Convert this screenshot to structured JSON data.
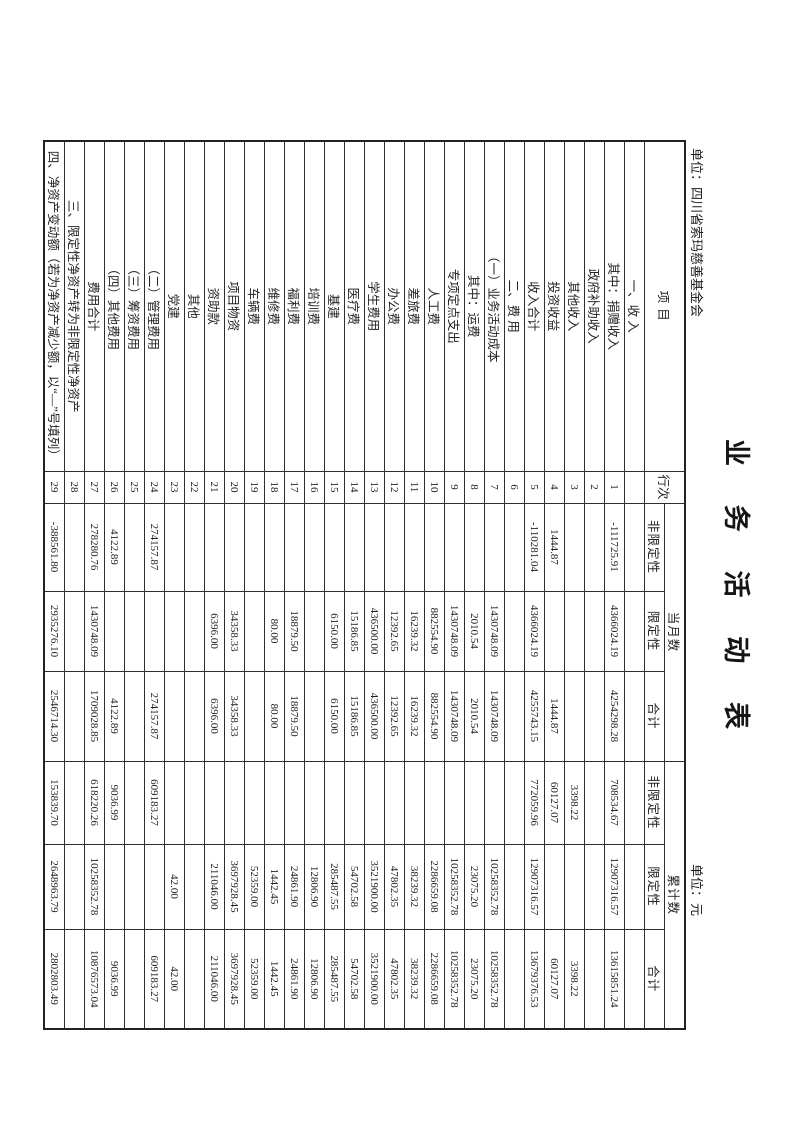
{
  "page": {
    "title": "业 务 活 动 表",
    "unit_left": "单位：四川省索玛慈善基金会",
    "unit_right": "单位：元"
  },
  "table": {
    "headers": {
      "item": "项  目",
      "line_no": "行次",
      "current_month": "当月数",
      "cumulative": "累计数",
      "unrestricted": "非限定性",
      "restricted": "限定性",
      "total": "合计"
    },
    "rows": [
      {
        "item": "一、收 入",
        "line": "",
        "cm": [
          "",
          "",
          ""
        ],
        "cum": [
          "",
          "",
          ""
        ]
      },
      {
        "item": "其中：捐赠收入",
        "line": "1",
        "cm": [
          "-111725.91",
          "4366024.19",
          "4254298.28"
        ],
        "cum": [
          "708534.67",
          "12907316.57",
          "13615851.24"
        ]
      },
      {
        "item": "政府补助收入",
        "line": "2",
        "cm": [
          "",
          "",
          ""
        ],
        "cum": [
          "",
          "",
          ""
        ]
      },
      {
        "item": "其他收入",
        "line": "3",
        "cm": [
          "",
          "",
          ""
        ],
        "cum": [
          "3398.22",
          "",
          "3398.22"
        ]
      },
      {
        "item": "投资收益",
        "line": "4",
        "cm": [
          "1444.87",
          "",
          "1444.87"
        ],
        "cum": [
          "60127.07",
          "",
          "60127.07"
        ]
      },
      {
        "item": "收入合计",
        "line": "5",
        "cm": [
          "-110281.04",
          "4366024.19",
          "4255743.15"
        ],
        "cum": [
          "772059.96",
          "12907316.57",
          "13679376.53"
        ]
      },
      {
        "item": "二、费 用",
        "line": "6",
        "cm": [
          "",
          "",
          ""
        ],
        "cum": [
          "",
          "",
          ""
        ]
      },
      {
        "item": "（一）业务活动成本",
        "line": "7",
        "cm": [
          "",
          "1430748.09",
          "1430748.09"
        ],
        "cum": [
          "",
          "10258352.78",
          "10258352.78"
        ]
      },
      {
        "item": "其中：运费",
        "line": "8",
        "cm": [
          "",
          "2010.54",
          "2010.54"
        ],
        "cum": [
          "",
          "23075.20",
          "23075.20"
        ]
      },
      {
        "item": "专项定点支出",
        "line": "9",
        "cm": [
          "",
          "1430748.09",
          "1430748.09"
        ],
        "cum": [
          "",
          "10258352.78",
          "10258352.78"
        ]
      },
      {
        "item": "人工费",
        "line": "10",
        "cm": [
          "",
          "882554.90",
          "882554.90"
        ],
        "cum": [
          "",
          "2286659.08",
          "2286659.08"
        ]
      },
      {
        "item": "差旅费",
        "line": "11",
        "cm": [
          "",
          "16239.32",
          "16239.32"
        ],
        "cum": [
          "",
          "38239.32",
          "38239.32"
        ]
      },
      {
        "item": "办公费",
        "line": "12",
        "cm": [
          "",
          "12392.65",
          "12392.65"
        ],
        "cum": [
          "",
          "47802.35",
          "47802.35"
        ]
      },
      {
        "item": "学生费用",
        "line": "13",
        "cm": [
          "",
          "436500.00",
          "436500.00"
        ],
        "cum": [
          "",
          "3521900.00",
          "3521900.00"
        ]
      },
      {
        "item": "医疗费",
        "line": "14",
        "cm": [
          "",
          "15186.85",
          "15186.85"
        ],
        "cum": [
          "",
          "54702.58",
          "54702.58"
        ]
      },
      {
        "item": "基建",
        "line": "15",
        "cm": [
          "",
          "6150.00",
          "6150.00"
        ],
        "cum": [
          "",
          "285487.55",
          "285487.55"
        ]
      },
      {
        "item": "培训费",
        "line": "16",
        "cm": [
          "",
          "",
          ""
        ],
        "cum": [
          "",
          "12806.90",
          "12806.90"
        ]
      },
      {
        "item": "福利费",
        "line": "17",
        "cm": [
          "",
          "18879.50",
          "18879.50"
        ],
        "cum": [
          "",
          "24861.90",
          "24861.90"
        ]
      },
      {
        "item": "维修费",
        "line": "18",
        "cm": [
          "",
          "80.00",
          "80.00"
        ],
        "cum": [
          "",
          "1442.45",
          "1442.45"
        ]
      },
      {
        "item": "车辆费",
        "line": "19",
        "cm": [
          "",
          "",
          ""
        ],
        "cum": [
          "",
          "52359.00",
          "52359.00"
        ]
      },
      {
        "item": "项目物资",
        "line": "20",
        "cm": [
          "",
          "34358.33",
          "34358.33"
        ],
        "cum": [
          "",
          "3697928.45",
          "3697928.45"
        ]
      },
      {
        "item": "资助款",
        "line": "21",
        "cm": [
          "",
          "6396.00",
          "6396.00"
        ],
        "cum": [
          "",
          "211046.00",
          "211046.00"
        ]
      },
      {
        "item": "其他",
        "line": "22",
        "cm": [
          "",
          "",
          ""
        ],
        "cum": [
          "",
          "",
          ""
        ]
      },
      {
        "item": "党建",
        "line": "23",
        "cm": [
          "",
          "",
          ""
        ],
        "cum": [
          "",
          "42.00",
          "42.00"
        ]
      },
      {
        "item": "（二）管理费用",
        "line": "24",
        "cm": [
          "274157.87",
          "",
          "274157.87"
        ],
        "cum": [
          "609183.27",
          "",
          "609183.27"
        ]
      },
      {
        "item": "（三）筹资费用",
        "line": "25",
        "cm": [
          "",
          "",
          ""
        ],
        "cum": [
          "",
          "",
          ""
        ]
      },
      {
        "item": "（四）其他费用",
        "line": "26",
        "cm": [
          "4122.89",
          "",
          "4122.89"
        ],
        "cum": [
          "9036.99",
          "",
          "9036.99"
        ]
      },
      {
        "item": "费用合计",
        "line": "27",
        "cm": [
          "278280.76",
          "1430748.09",
          "1709028.85"
        ],
        "cum": [
          "618220.26",
          "10258352.78",
          "10876573.04"
        ]
      },
      {
        "item": "三、限定性净资产转为非限定性净资产",
        "line": "28",
        "cm": [
          "",
          "",
          ""
        ],
        "cum": [
          "",
          "",
          ""
        ]
      },
      {
        "item": "四、净资产变动额（若为净资产减少额，以“—”号填列）",
        "line": "29",
        "cm": [
          "-388561.80",
          "2935276.10",
          "2546714.30"
        ],
        "cum": [
          "153839.70",
          "2648963.79",
          "2802803.49"
        ]
      }
    ]
  }
}
